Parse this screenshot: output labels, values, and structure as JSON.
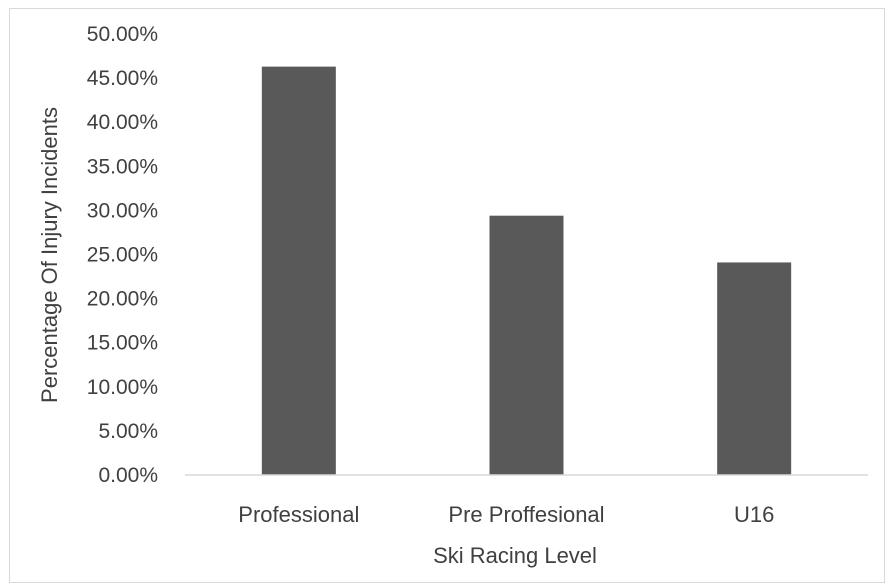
{
  "chart_data": {
    "type": "bar",
    "title": "",
    "xlabel": "Ski Racing Level",
    "ylabel": "Percentage Of Injury Incidents",
    "categories": [
      "Professional",
      "Pre Proffesional",
      "U16"
    ],
    "values": [
      46.3,
      29.4,
      24.1
    ],
    "ylim": [
      0,
      50
    ],
    "yticks": [
      0,
      5,
      10,
      15,
      20,
      25,
      30,
      35,
      40,
      45,
      50
    ],
    "ytick_labels": [
      "0.00%",
      "5.00%",
      "10.00%",
      "15.00%",
      "20.00%",
      "25.00%",
      "30.00%",
      "35.00%",
      "40.00%",
      "45.00%",
      "50.00%"
    ],
    "grid": false,
    "legend": "none",
    "bar_color": "#595959"
  }
}
